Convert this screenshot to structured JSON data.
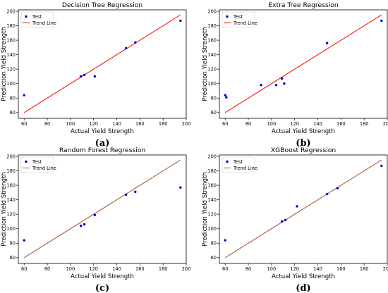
{
  "chart_data": [
    {
      "type": "scatter",
      "title": "Decision Tree Regression",
      "xlabel": "Actual Yield Strength",
      "ylabel": "Prediction Yield Strength",
      "caption": "(a)",
      "xlim": [
        55,
        200
      ],
      "ylim": [
        52,
        202
      ],
      "xticks": [
        "60",
        "80",
        "100",
        "120",
        "140",
        "160",
        "180",
        "200"
      ],
      "yticks": [
        "60",
        "80",
        "100",
        "120",
        "140",
        "160",
        "180",
        "200"
      ],
      "grid": false,
      "legend_position": "top-left",
      "legend": [
        "Test",
        "Trend Line"
      ],
      "trend_color": "#ff0000",
      "point_color": "#0000cc",
      "trend": [
        [
          60,
          60
        ],
        [
          195,
          195
        ]
      ],
      "points": [
        [
          60,
          84
        ],
        [
          109,
          110
        ],
        [
          112,
          112
        ],
        [
          121,
          110
        ],
        [
          148,
          149
        ],
        [
          156,
          157
        ],
        [
          195,
          187
        ]
      ]
    },
    {
      "type": "scatter",
      "title": "Extra Tree Regression",
      "xlabel": "Actual Yield Strength",
      "ylabel": "Prediction Yield Strength",
      "caption": "(b)",
      "xlim": [
        55,
        200
      ],
      "ylim": [
        52,
        202
      ],
      "xticks": [
        "60",
        "80",
        "100",
        "120",
        "140",
        "160",
        "180",
        "200"
      ],
      "yticks": [
        "60",
        "80",
        "100",
        "120",
        "140",
        "160",
        "180",
        "200"
      ],
      "grid": false,
      "legend_position": "top-left",
      "legend": [
        "Test",
        "Trend Line"
      ],
      "trend_color": "#ff0000",
      "point_color": "#0000cc",
      "trend": [
        [
          60,
          60
        ],
        [
          195,
          195
        ]
      ],
      "points": [
        [
          60,
          84
        ],
        [
          61,
          81
        ],
        [
          91,
          98
        ],
        [
          104,
          98
        ],
        [
          109,
          107
        ],
        [
          111,
          100
        ],
        [
          148,
          156
        ],
        [
          195,
          187
        ]
      ]
    },
    {
      "type": "scatter",
      "title": "Random Forest Regression",
      "xlabel": "Actual Yield Strength",
      "ylabel": "Prediction Yield Strength",
      "caption": "(c)",
      "xlim": [
        55,
        200
      ],
      "ylim": [
        52,
        202
      ],
      "xticks": [
        "60",
        "80",
        "100",
        "120",
        "140",
        "160",
        "180",
        "200"
      ],
      "yticks": [
        "60",
        "80",
        "100",
        "120",
        "140",
        "160",
        "180",
        "200"
      ],
      "grid": false,
      "legend_position": "top-left",
      "legend": [
        "Test",
        "Trend Line"
      ],
      "trend_color": "#a0522d",
      "point_color": "#0000cc",
      "trend": [
        [
          60,
          60
        ],
        [
          195,
          195
        ]
      ],
      "points": [
        [
          60,
          84
        ],
        [
          109,
          104
        ],
        [
          112,
          106
        ],
        [
          121,
          119
        ],
        [
          148,
          147
        ],
        [
          156,
          151
        ],
        [
          195,
          157
        ]
      ]
    },
    {
      "type": "scatter",
      "title": "XGBoost Regression",
      "xlabel": "Actual Yield Strength",
      "ylabel": "Prediction Yield Strength",
      "caption": "(d)",
      "xlim": [
        55,
        200
      ],
      "ylim": [
        52,
        202
      ],
      "xticks": [
        "60",
        "80",
        "100",
        "120",
        "140",
        "160",
        "180",
        "200"
      ],
      "yticks": [
        "60",
        "80",
        "100",
        "120",
        "140",
        "160",
        "180",
        "200"
      ],
      "grid": false,
      "legend_position": "top-left",
      "legend": [
        "Test",
        "Trend Line"
      ],
      "trend_color": "#a0522d",
      "point_color": "#0000cc",
      "trend": [
        [
          60,
          60
        ],
        [
          195,
          195
        ]
      ],
      "points": [
        [
          60,
          84
        ],
        [
          109,
          110
        ],
        [
          112,
          112
        ],
        [
          122,
          131
        ],
        [
          148,
          148
        ],
        [
          157,
          156
        ],
        [
          195,
          187
        ]
      ]
    }
  ]
}
